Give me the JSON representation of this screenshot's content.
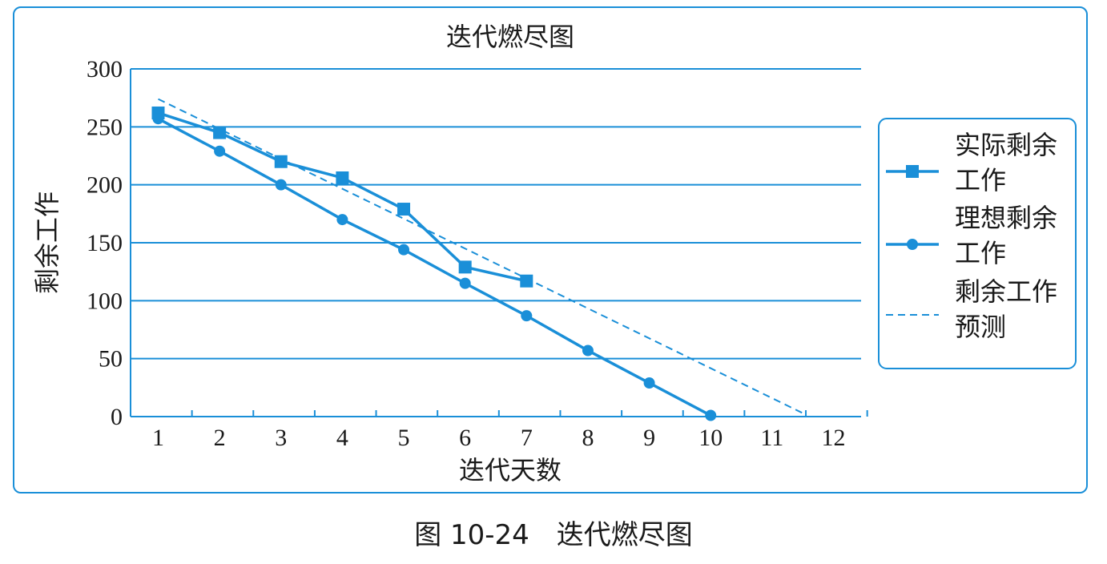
{
  "chart_data": {
    "type": "line",
    "title": "迭代燃尽图",
    "xlabel": "迭代天数",
    "ylabel": "剩余工作",
    "x": [
      1,
      2,
      3,
      4,
      5,
      6,
      7,
      8,
      9,
      10,
      11,
      12
    ],
    "xlim": [
      0.55,
      12.45
    ],
    "ylim": [
      0,
      300
    ],
    "yticks": [
      0,
      50,
      100,
      150,
      200,
      250,
      300
    ],
    "grid": "horizontal",
    "legend_position": "right",
    "colors": {
      "line": "#1a8fd8",
      "frame": "#1a8fd8",
      "text": "#1a1a1a"
    },
    "series": [
      {
        "name": "实际剩余工作",
        "marker": "square",
        "style": "solid",
        "x": [
          1,
          2,
          3,
          4,
          5,
          6,
          7
        ],
        "values": [
          262,
          245,
          220,
          206,
          179,
          129,
          117
        ]
      },
      {
        "name": "理想剩余工作",
        "marker": "circle",
        "style": "solid",
        "x": [
          1,
          2,
          3,
          4,
          5,
          6,
          7,
          8,
          9,
          10
        ],
        "values": [
          257,
          229,
          200,
          170,
          144,
          115,
          87,
          57,
          29,
          1
        ]
      },
      {
        "name": "剩余工作预测",
        "marker": "none",
        "style": "dashed",
        "x": [
          1,
          11.5
        ],
        "values": [
          274,
          3
        ]
      }
    ]
  },
  "caption": "图 10-24　迭代燃尽图"
}
